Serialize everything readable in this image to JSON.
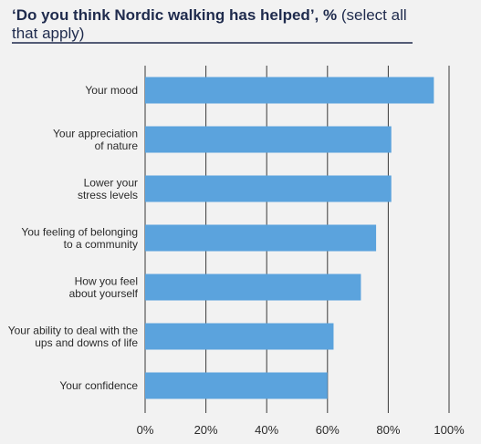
{
  "chart_data": {
    "type": "bar",
    "orientation": "horizontal",
    "title_bold": "‘Do you think Nordic walking has helped’, %",
    "title_normal": " (select all",
    "title_line2": "that apply)",
    "categories": [
      [
        "Your mood"
      ],
      [
        "Your appreciation",
        "of nature"
      ],
      [
        "Lower your",
        "stress levels"
      ],
      [
        "You feeling of belonging",
        "to a community"
      ],
      [
        "How you feel",
        "about yourself"
      ],
      [
        "Your ability to deal with the",
        "ups and downs of life"
      ],
      [
        "Your confidence"
      ]
    ],
    "values": [
      95,
      81,
      81,
      76,
      71,
      62,
      60
    ],
    "xlim": [
      0,
      100
    ],
    "xticks": [
      0,
      20,
      40,
      60,
      80,
      100
    ],
    "xtick_labels": [
      "0%",
      "20%",
      "40%",
      "60%",
      "80%",
      "100%"
    ],
    "grid": true,
    "colors": {
      "bar": "#5ba3dd",
      "title": "#1f2b4d",
      "title_underline": "#1f2b4d",
      "gridline": "#3a3a3a"
    }
  }
}
